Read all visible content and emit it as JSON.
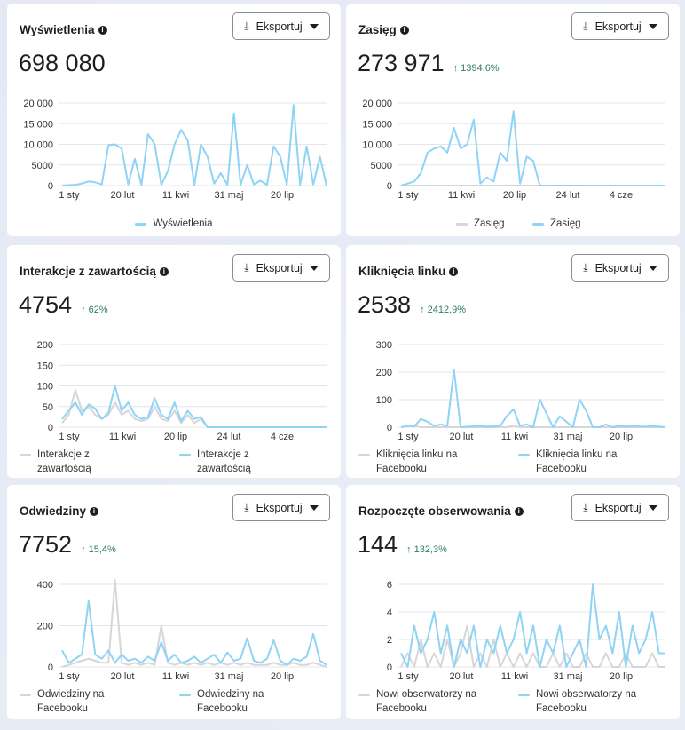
{
  "colors": {
    "blue": "#8fd3f5",
    "gray": "#d6d6d8",
    "grid": "#e4e6eb",
    "positive": "#2e7d5b"
  },
  "export_label": "Eksportuj",
  "cards": [
    {
      "title": "Wyświetlenia",
      "value": "698 080",
      "change": "",
      "legend": [
        "Wyświetlenia"
      ],
      "chart_data": {
        "type": "line",
        "ylim": [
          0,
          20000
        ],
        "yticks": [
          "0",
          "5000",
          "10 000",
          "15 000",
          "20 000"
        ],
        "xticks": [
          "1 sty",
          "20 lut",
          "11 kwi",
          "31 maj",
          "20 lip"
        ],
        "series": [
          {
            "name": "Wyświetlenia",
            "color": "blue",
            "values": [
              0,
              100,
              200,
              500,
              1000,
              800,
              300,
              9800,
              10000,
              9000,
              300,
              6500,
              200,
              12500,
              10000,
              200,
              3500,
              10000,
              13500,
              11000,
              200,
              10000,
              7000,
              500,
              3000,
              200,
              17500,
              200,
              5000,
              300,
              1200,
              200,
              9500,
              7000,
              200,
              19500,
              200,
              9500,
              300,
              7000,
              0
            ]
          }
        ]
      }
    },
    {
      "title": "Zasięg",
      "value": "273 971",
      "change": "↑ 1394,6%",
      "legend": [
        "Zasięg",
        "Zasięg"
      ],
      "chart_data": {
        "type": "line",
        "ylim": [
          0,
          20000
        ],
        "yticks": [
          "0",
          "5000",
          "10 000",
          "15 000",
          "20 000"
        ],
        "xticks": [
          "1 sty",
          "11 kwi",
          "20 lip",
          "24 lut",
          "4 cze"
        ],
        "series": [
          {
            "name": "Zasięg",
            "color": "gray",
            "values": [
              0,
              0,
              0,
              0,
              0,
              0,
              0,
              0,
              0,
              0,
              0,
              0,
              0,
              0,
              0,
              0,
              0,
              0,
              0,
              0,
              0,
              0,
              0,
              0,
              0,
              0,
              0,
              0,
              0,
              0,
              0,
              0,
              0,
              0,
              0,
              0,
              0,
              0,
              0,
              0,
              0
            ]
          },
          {
            "name": "Zasięg",
            "color": "blue",
            "values": [
              0,
              500,
              1000,
              3000,
              8000,
              9000,
              9500,
              8000,
              14000,
              9000,
              10000,
              16000,
              500,
              2000,
              1000,
              8000,
              6000,
              18000,
              500,
              7000,
              6000,
              0,
              0,
              0,
              0,
              0,
              0,
              0,
              0,
              0,
              0,
              0,
              0,
              0,
              0,
              0,
              0,
              0,
              0,
              0,
              0
            ]
          }
        ]
      }
    },
    {
      "title": "Interakcje z zawartością",
      "value": "4754",
      "change": "↑ 62%",
      "legend": [
        "Interakcje z zawartością",
        "Interakcje z zawartością"
      ],
      "chart_data": {
        "type": "line",
        "ylim": [
          0,
          200
        ],
        "yticks": [
          "0",
          "50",
          "100",
          "150",
          "200"
        ],
        "xticks": [
          "1 sty",
          "11 kwi",
          "20 lip",
          "24 lut",
          "4 cze"
        ],
        "series": [
          {
            "name": "Interakcje z zawartością",
            "color": "gray",
            "values": [
              10,
              30,
              90,
              40,
              50,
              30,
              20,
              30,
              60,
              30,
              40,
              20,
              15,
              20,
              50,
              20,
              15,
              40,
              10,
              30,
              10,
              20,
              0,
              0,
              0,
              0,
              0,
              0,
              0,
              0,
              0,
              0,
              0,
              0,
              0,
              0,
              0,
              0,
              0,
              0,
              0
            ]
          },
          {
            "name": "Interakcje z zawartością",
            "color": "blue",
            "values": [
              20,
              40,
              60,
              30,
              55,
              45,
              20,
              35,
              100,
              40,
              60,
              30,
              20,
              25,
              70,
              30,
              20,
              60,
              15,
              40,
              20,
              25,
              0,
              0,
              0,
              0,
              0,
              0,
              0,
              0,
              0,
              0,
              0,
              0,
              0,
              0,
              0,
              0,
              0,
              0,
              0
            ]
          }
        ]
      }
    },
    {
      "title": "Kliknięcia linku",
      "value": "2538",
      "change": "↑ 2412,9%",
      "legend": [
        "Kliknięcia linku na Facebooku",
        "Kliknięcia linku na Facebooku"
      ],
      "chart_data": {
        "type": "line",
        "ylim": [
          0,
          300
        ],
        "yticks": [
          "0",
          "100",
          "200",
          "300"
        ],
        "xticks": [
          "1 sty",
          "20 lut",
          "11 kwi",
          "31 maj",
          "20 lip"
        ],
        "series": [
          {
            "name": "Kliknięcia linku na Facebooku",
            "color": "gray",
            "values": [
              0,
              5,
              5,
              0,
              0,
              0,
              0,
              0,
              0,
              0,
              0,
              0,
              0,
              0,
              0,
              0,
              0,
              5,
              0,
              0,
              0,
              0,
              0,
              0,
              0,
              0,
              0,
              0,
              0,
              0,
              0,
              0,
              0,
              0,
              0,
              0,
              0,
              0,
              0,
              0,
              0
            ]
          },
          {
            "name": "Kliknięcia linku na Facebooku",
            "color": "blue",
            "values": [
              0,
              5,
              3,
              30,
              20,
              5,
              10,
              5,
              210,
              0,
              2,
              3,
              5,
              2,
              3,
              5,
              40,
              65,
              5,
              10,
              0,
              100,
              50,
              0,
              40,
              20,
              0,
              100,
              60,
              0,
              0,
              10,
              0,
              5,
              2,
              5,
              3,
              2,
              4,
              2,
              0
            ]
          }
        ]
      }
    },
    {
      "title": "Odwiedziny",
      "value": "7752",
      "change": "↑ 15,4%",
      "legend": [
        "Odwiedziny na Facebooku",
        "Odwiedziny na Facebooku"
      ],
      "chart_data": {
        "type": "line",
        "ylim": [
          0,
          400
        ],
        "yticks": [
          "0",
          "200",
          "400"
        ],
        "xticks": [
          "1 sty",
          "20 lut",
          "11 kwi",
          "31 maj",
          "20 lip"
        ],
        "series": [
          {
            "name": "Odwiedziny na Facebooku",
            "color": "gray",
            "values": [
              0,
              10,
              20,
              30,
              40,
              30,
              20,
              20,
              420,
              20,
              10,
              20,
              10,
              20,
              10,
              200,
              20,
              10,
              20,
              10,
              20,
              10,
              20,
              10,
              20,
              10,
              20,
              10,
              20,
              10,
              10,
              10,
              20,
              10,
              10,
              20,
              10,
              10,
              20,
              10,
              0
            ]
          },
          {
            "name": "Odwiedziny na Facebooku",
            "color": "blue",
            "values": [
              80,
              20,
              40,
              60,
              320,
              60,
              40,
              80,
              20,
              60,
              30,
              40,
              20,
              50,
              30,
              120,
              30,
              60,
              20,
              30,
              50,
              20,
              40,
              60,
              20,
              70,
              30,
              40,
              140,
              30,
              20,
              40,
              130,
              30,
              10,
              40,
              30,
              50,
              160,
              30,
              10
            ]
          }
        ]
      }
    },
    {
      "title": "Rozpoczęte obserwowania",
      "value": "144",
      "change": "↑ 132,3%",
      "legend": [
        "Nowi obserwatorzy na Facebooku",
        "Nowi obserwatorzy na Facebooku"
      ],
      "chart_data": {
        "type": "line",
        "ylim": [
          0,
          6
        ],
        "yticks": [
          "0",
          "2",
          "4",
          "6"
        ],
        "xticks": [
          "1 sty",
          "20 lut",
          "11 kwi",
          "31 maj",
          "20 lip"
        ],
        "series": [
          {
            "name": "Nowi obserwatorzy na Facebooku",
            "color": "gray",
            "values": [
              0,
              1,
              0,
              2,
              0,
              1,
              0,
              2,
              0,
              1,
              3,
              0,
              1,
              0,
              2,
              0,
              1,
              0,
              1,
              0,
              1,
              0,
              0,
              1,
              0,
              1,
              0,
              0,
              1,
              0,
              0,
              1,
              0,
              0,
              1,
              0,
              0,
              0,
              1,
              0,
              0
            ]
          },
          {
            "name": "Nowi obserwatorzy na Facebooku",
            "color": "blue",
            "values": [
              1,
              0,
              3,
              1,
              2,
              4,
              1,
              3,
              0,
              2,
              1,
              3,
              0,
              2,
              1,
              3,
              1,
              2,
              4,
              1,
              3,
              0,
              2,
              1,
              3,
              0,
              1,
              2,
              0,
              6,
              2,
              3,
              1,
              4,
              0,
              3,
              1,
              2,
              4,
              1,
              1
            ]
          }
        ]
      }
    }
  ]
}
